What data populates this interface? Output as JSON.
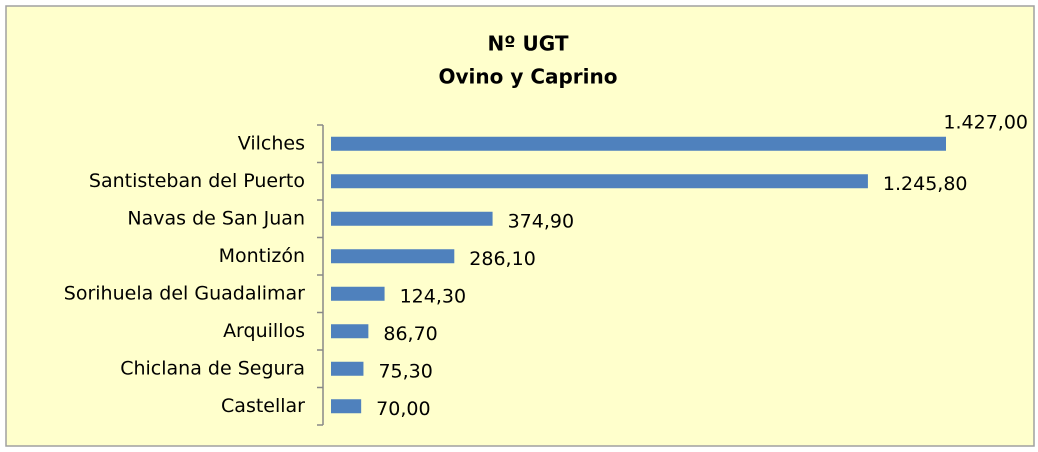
{
  "chart_data": {
    "type": "bar",
    "orientation": "horizontal",
    "title": [
      "Nº UGT",
      "Ovino y Caprino"
    ],
    "categories": [
      "Vilches",
      "Santisteban del Puerto",
      "Navas de San Juan",
      "Montizón",
      "Sorihuela del Guadalimar",
      "Arquillos",
      "Chiclana de Segura",
      "Castellar"
    ],
    "values": [
      1427.0,
      1245.8,
      374.9,
      286.1,
      124.3,
      86.7,
      75.3,
      70.0
    ],
    "value_labels": [
      "1.427,00",
      "1.245,80",
      "374,90",
      "286,10",
      "124,30",
      "86,70",
      "75,30",
      "70,00"
    ],
    "color": "#4f81bd"
  }
}
